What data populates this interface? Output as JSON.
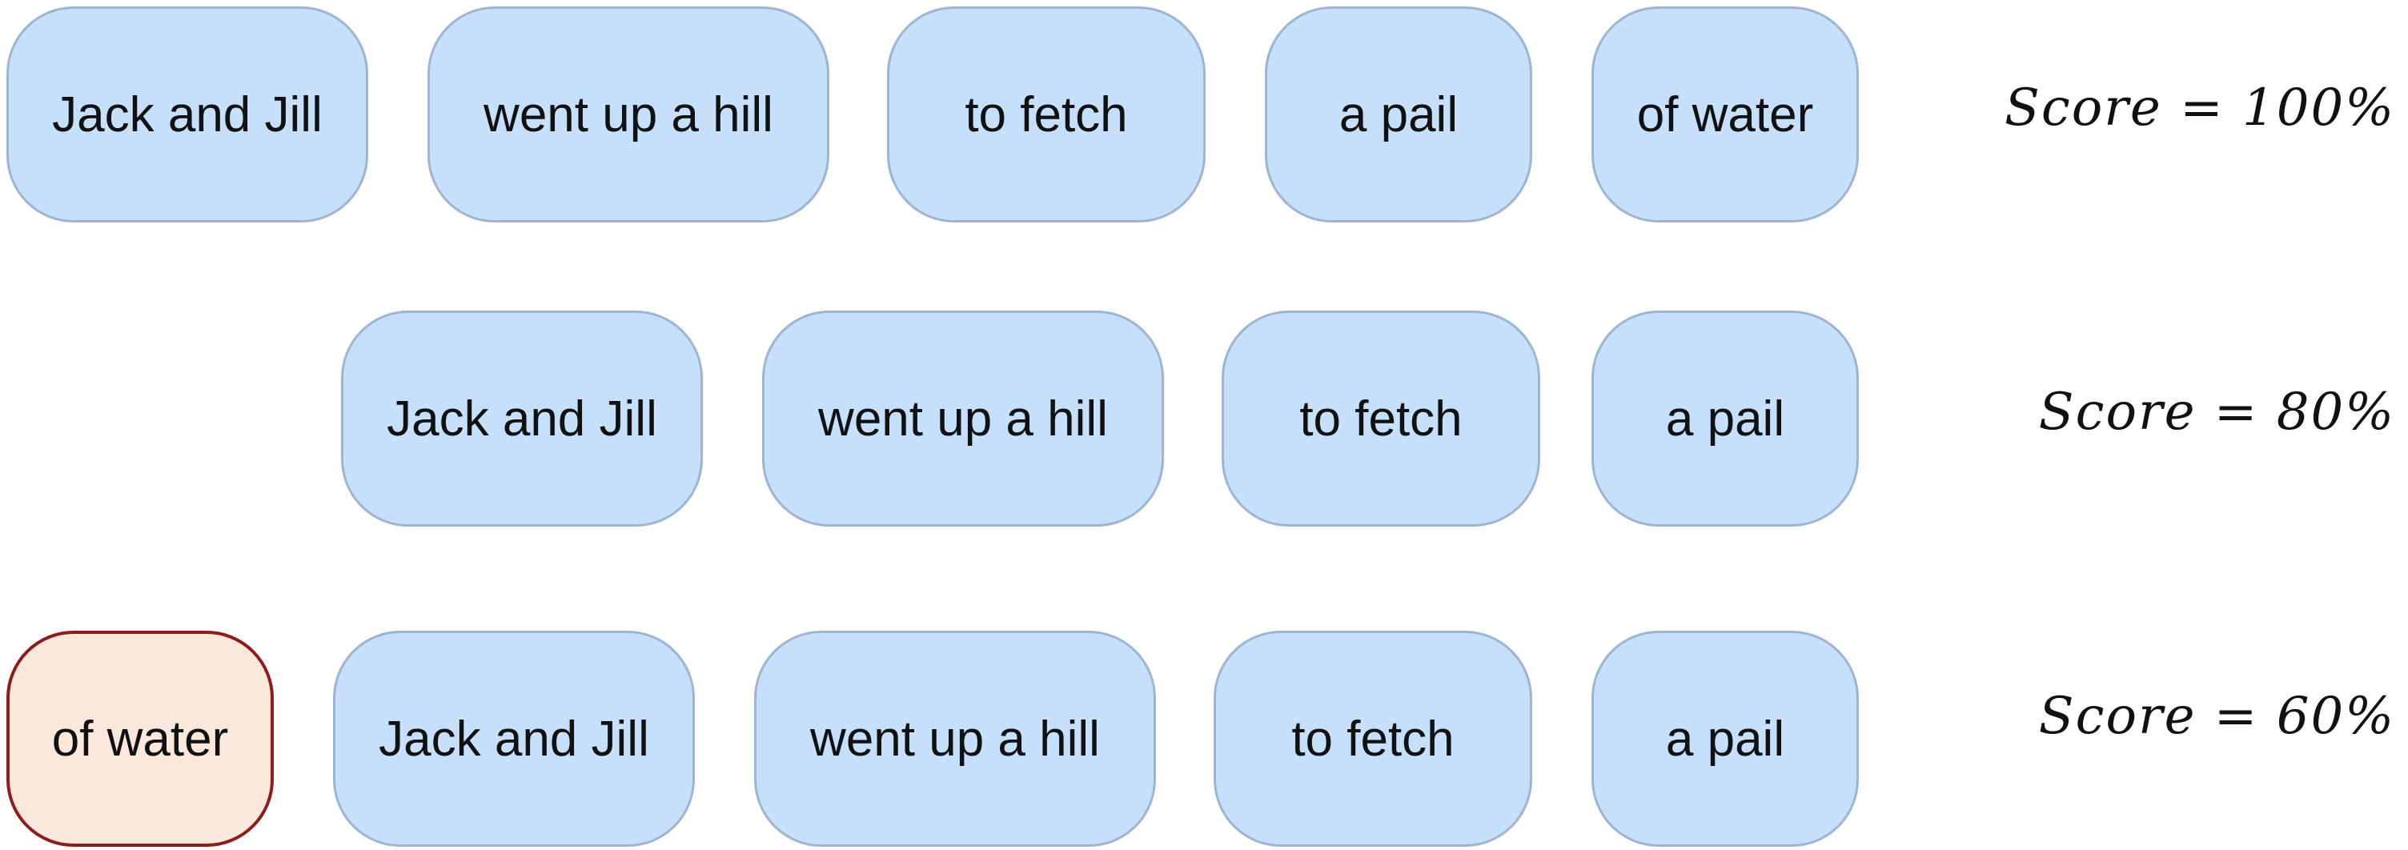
{
  "rows": [
    {
      "chips": [
        "Jack and Jill",
        "went up a hill",
        "to fetch",
        "a pail",
        "of water"
      ],
      "score": "Score = 100%"
    },
    {
      "chips": [
        "Jack and Jill",
        "went up a hill",
        "to fetch",
        "a pail"
      ],
      "score": "Score = 80%"
    },
    {
      "chips": [
        "of water",
        "Jack and Jill",
        "went up a hill",
        "to fetch",
        "a pail"
      ],
      "score": "Score = 60%"
    }
  ],
  "colors": {
    "chip_fill": "#c6dffb",
    "chip_border": "#9fb4cf",
    "misplaced_fill": "#fbe8dc",
    "misplaced_border": "#8f1c1c"
  }
}
